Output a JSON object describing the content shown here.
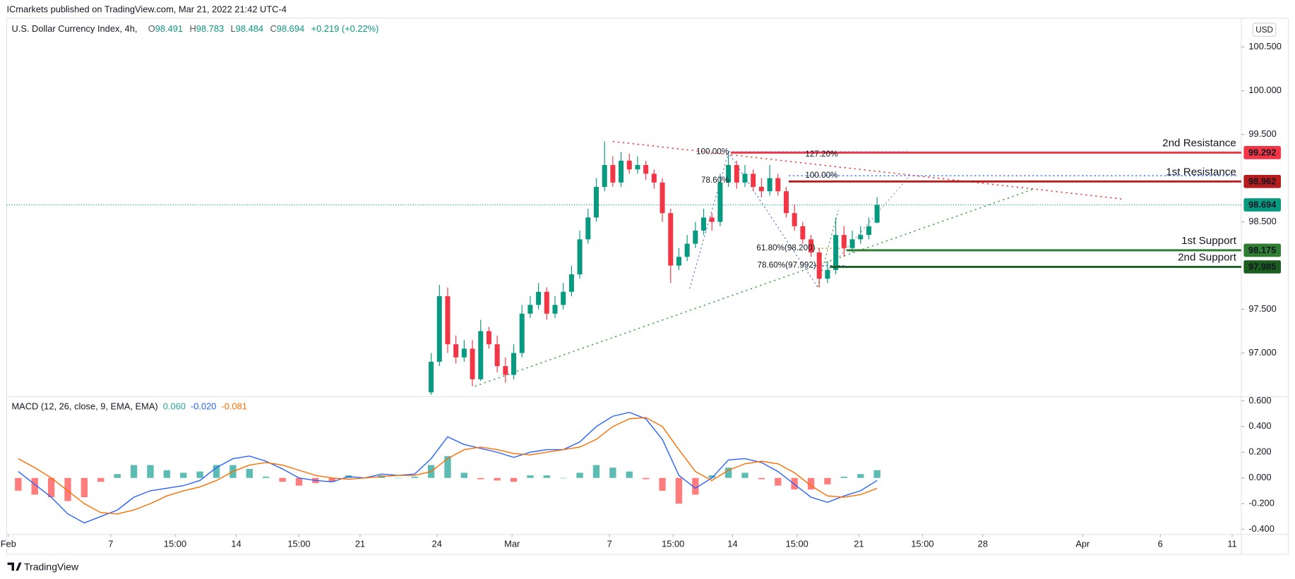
{
  "header": {
    "publisher": "ICmarkets published on TradingView.com, Mar 21, 2022 21:42 UTC-4",
    "currency": "USD",
    "brand": "TradingView"
  },
  "chart_data": [
    {
      "type": "candlestick",
      "title": "U.S. Dollar Currency Index, 4h,",
      "ohlc": [
        {
          "label": "O",
          "value": 98.491
        },
        {
          "label": "H",
          "value": 98.783
        },
        {
          "label": "L",
          "value": 98.484
        },
        {
          "label": "C",
          "value": 98.694
        }
      ],
      "change": "+0.219 (+0.22%)",
      "up_color": "#089981",
      "down_color": "#f23645",
      "xlim": [
        -51.4,
        98.1
      ],
      "ylim": [
        96.5,
        100.83
      ],
      "yticks": [
        {
          "value": 100.5,
          "label": "100.500"
        },
        {
          "value": 100,
          "label": "100.000"
        },
        {
          "value": 99.5,
          "label": "99.500"
        },
        {
          "value": 98.5,
          "label": "98.500"
        },
        {
          "value": 97.5,
          "label": "97.500"
        },
        {
          "value": 97,
          "label": "97.000"
        }
      ],
      "x": [
        0,
        1,
        2,
        3,
        4,
        5,
        6,
        7,
        8,
        9,
        10,
        11,
        12,
        13,
        14,
        15,
        16,
        17,
        18,
        19,
        20,
        21,
        22,
        23,
        24,
        25,
        26,
        27,
        28,
        29,
        30,
        31,
        32,
        33,
        34,
        35,
        36,
        37,
        38,
        39,
        40,
        41,
        42,
        43,
        44,
        45,
        46,
        47,
        48,
        49,
        50,
        51,
        52,
        53,
        54
      ],
      "open": [
        96.55,
        96.9,
        97.65,
        97.1,
        96.95,
        97.05,
        96.7,
        97.25,
        97.1,
        96.85,
        96.75,
        97.0,
        97.45,
        97.55,
        97.7,
        97.45,
        97.55,
        97.7,
        97.9,
        98.3,
        98.55,
        98.9,
        99.15,
        98.95,
        99.2,
        99.1,
        99.15,
        99.05,
        98.95,
        98.6,
        98.0,
        98.1,
        98.25,
        98.4,
        98.55,
        98.5,
        98.95,
        99.15,
        98.95,
        99.05,
        98.9,
        98.85,
        99.0,
        98.85,
        98.6,
        98.45,
        98.3,
        98.15,
        97.85,
        97.95,
        98.35,
        98.2,
        98.3,
        98.35,
        98.491
      ],
      "high": [
        97.0,
        97.78,
        97.75,
        97.2,
        97.15,
        97.15,
        97.38,
        97.3,
        97.2,
        96.95,
        97.1,
        97.55,
        97.65,
        97.8,
        97.75,
        97.65,
        97.8,
        98.0,
        98.4,
        98.65,
        99.0,
        99.42,
        99.25,
        99.3,
        99.28,
        99.25,
        99.2,
        99.1,
        99.0,
        98.65,
        98.2,
        98.35,
        98.5,
        98.65,
        98.6,
        99.05,
        99.29,
        99.2,
        99.15,
        99.1,
        99.0,
        99.15,
        99.05,
        98.9,
        98.7,
        98.5,
        98.35,
        98.2,
        98.05,
        98.55,
        98.45,
        98.4,
        98.45,
        98.55,
        98.783
      ],
      "low": [
        96.52,
        96.85,
        97.0,
        96.88,
        96.9,
        96.62,
        96.68,
        97.05,
        96.78,
        96.66,
        96.7,
        96.95,
        97.4,
        97.5,
        97.38,
        97.4,
        97.5,
        97.65,
        97.85,
        98.25,
        98.5,
        98.85,
        98.9,
        98.9,
        99.05,
        99.05,
        98.98,
        98.88,
        98.5,
        97.8,
        97.95,
        98.05,
        98.2,
        98.35,
        98.4,
        98.45,
        98.9,
        98.88,
        98.9,
        98.85,
        98.78,
        98.8,
        98.8,
        98.55,
        98.4,
        98.25,
        98.1,
        97.75,
        97.8,
        97.9,
        98.1,
        98.15,
        98.25,
        98.3,
        98.484
      ],
      "close": [
        96.9,
        97.65,
        97.1,
        96.95,
        97.05,
        96.7,
        97.25,
        97.1,
        96.85,
        96.75,
        97.0,
        97.45,
        97.55,
        97.7,
        97.45,
        97.55,
        97.7,
        97.9,
        98.3,
        98.55,
        98.9,
        99.15,
        98.95,
        99.2,
        99.1,
        99.15,
        99.05,
        98.95,
        98.6,
        98.0,
        98.1,
        98.25,
        98.4,
        98.55,
        98.5,
        98.95,
        99.15,
        98.95,
        99.05,
        98.9,
        98.85,
        99.0,
        98.85,
        98.6,
        98.45,
        98.3,
        98.15,
        97.85,
        97.95,
        98.35,
        98.2,
        98.3,
        98.35,
        98.45,
        98.694
      ],
      "last_price": {
        "value": 98.694,
        "color": "#089981"
      },
      "levels": [
        {
          "label": "2nd Resistance",
          "value": 99.292,
          "color": "#f23645",
          "x_start": 36.3
        },
        {
          "label": "1st Resistance",
          "value": 98.962,
          "color": "#b71c1c",
          "x_start": 43.3
        },
        {
          "label": "1st Support",
          "value": 98.175,
          "color": "#2e7d32",
          "x_start": 50.3
        },
        {
          "label": "2nd Support",
          "value": 97.985,
          "color": "#1b5e20",
          "x_start": 48.3
        }
      ],
      "trendlines": [
        {
          "color": "#e53935",
          "x": [
            22,
            83.8
          ],
          "y": [
            99.42,
            98.76
          ]
        },
        {
          "color": "#43a047",
          "x": [
            5.3,
            72.8
          ],
          "y": [
            96.62,
            98.87
          ]
        }
      ],
      "annotations": [
        {
          "text": "100.00%",
          "color": "#2962ff"
        },
        {
          "text": "127.20%",
          "color": "#90a4d4"
        },
        {
          "text": "78.60%",
          "color": "#2962ff"
        },
        {
          "text": "100.00%",
          "color": "#2962ff"
        },
        {
          "text": "61.80%(98.200)",
          "color": "#b8860b"
        },
        {
          "text": "78.60%(97.992)",
          "color": "#2962ff"
        }
      ]
    },
    {
      "type": "macd",
      "title": "MACD (12, 26, close, 9, EMA, EMA)",
      "current": [
        {
          "value": 0.06,
          "label": "0.060",
          "color": "#26a69a"
        },
        {
          "value": -0.02,
          "label": "-0.020",
          "color": "#2962ff"
        },
        {
          "value": -0.081,
          "label": "-0.081",
          "color": "#ff6d00"
        }
      ],
      "xlim": [
        -51.4,
        98.1
      ],
      "ylim": [
        -0.44,
        0.632
      ],
      "yticks": [
        {
          "value": 0.6,
          "label": "0.600"
        },
        {
          "value": 0.4,
          "label": "0.400"
        },
        {
          "value": 0.2,
          "label": "0.200"
        },
        {
          "value": 0,
          "label": "0.000"
        },
        {
          "value": -0.2,
          "label": "-0.200"
        },
        {
          "value": -0.4,
          "label": "-0.400"
        }
      ],
      "xticks": [
        {
          "value": -51.2,
          "label": "Feb"
        },
        {
          "value": -38.8,
          "label": "7"
        },
        {
          "value": -31,
          "label": "15:00"
        },
        {
          "value": -23.6,
          "label": "14"
        },
        {
          "value": -16,
          "label": "15:00"
        },
        {
          "value": -8.6,
          "label": "21"
        },
        {
          "value": 0.7,
          "label": "24"
        },
        {
          "value": 9.8,
          "label": "Mar"
        },
        {
          "value": 21.6,
          "label": "7"
        },
        {
          "value": 29.3,
          "label": "15:00"
        },
        {
          "value": 36.5,
          "label": "14"
        },
        {
          "value": 44.3,
          "label": "15:00"
        },
        {
          "value": 51.8,
          "label": "21"
        },
        {
          "value": 59.5,
          "label": "15:00"
        },
        {
          "value": 66.8,
          "label": "28"
        },
        {
          "value": 78.9,
          "label": "Apr"
        },
        {
          "value": 88.3,
          "label": "6"
        },
        {
          "value": 97,
          "label": "11"
        }
      ],
      "x": [
        -50,
        -48,
        -46,
        -44,
        -42,
        -40,
        -38,
        -36,
        -34,
        -32,
        -30,
        -28,
        -26,
        -24,
        -22,
        -20,
        -18,
        -16,
        -14,
        -12,
        -10,
        -8,
        -6,
        -4,
        -2,
        0,
        2,
        4,
        6,
        8,
        10,
        12,
        14,
        16,
        18,
        20,
        22,
        24,
        26,
        28,
        30,
        32,
        34,
        36,
        38,
        40,
        42,
        44,
        46,
        48,
        50,
        52,
        54
      ],
      "histogram": {
        "pos_color": "#26a69a",
        "neg_color": "#ff5252",
        "values": [
          -0.1,
          -0.13,
          -0.15,
          -0.18,
          -0.15,
          -0.03,
          0.03,
          0.1,
          0.1,
          0.06,
          0.04,
          0.05,
          0.1,
          0.1,
          0.07,
          0.01,
          -0.03,
          -0.06,
          -0.04,
          -0.03,
          0.02,
          0.0,
          0.02,
          0.0,
          0.01,
          0.1,
          0.17,
          0.04,
          -0.01,
          -0.02,
          -0.03,
          0.02,
          0.02,
          0.0,
          0.04,
          0.1,
          0.08,
          0.05,
          -0.01,
          -0.1,
          -0.2,
          -0.13,
          0.02,
          0.08,
          0.04,
          -0.01,
          -0.06,
          -0.09,
          -0.09,
          -0.05,
          0.01,
          0.03,
          0.06
        ]
      },
      "macd": {
        "color": "#2962ff",
        "values": [
          0.05,
          -0.05,
          -0.15,
          -0.28,
          -0.35,
          -0.3,
          -0.25,
          -0.15,
          -0.1,
          -0.08,
          -0.06,
          -0.02,
          0.08,
          0.15,
          0.17,
          0.13,
          0.07,
          0.0,
          -0.02,
          -0.03,
          0.01,
          0.0,
          0.03,
          0.02,
          0.03,
          0.15,
          0.32,
          0.26,
          0.23,
          0.2,
          0.16,
          0.2,
          0.22,
          0.22,
          0.28,
          0.4,
          0.48,
          0.51,
          0.46,
          0.3,
          0.02,
          -0.08,
          0.0,
          0.14,
          0.15,
          0.12,
          0.05,
          -0.05,
          -0.15,
          -0.19,
          -0.14,
          -0.1,
          -0.02
        ]
      },
      "signal": {
        "color": "#ff6d00",
        "values": [
          0.15,
          0.08,
          0.0,
          -0.1,
          -0.2,
          -0.27,
          -0.28,
          -0.25,
          -0.2,
          -0.14,
          -0.1,
          -0.07,
          -0.02,
          0.05,
          0.1,
          0.12,
          0.1,
          0.06,
          0.02,
          0.0,
          -0.01,
          0.0,
          0.01,
          0.02,
          0.02,
          0.05,
          0.15,
          0.22,
          0.24,
          0.22,
          0.19,
          0.18,
          0.2,
          0.22,
          0.24,
          0.3,
          0.4,
          0.46,
          0.47,
          0.4,
          0.22,
          0.05,
          -0.02,
          0.06,
          0.11,
          0.13,
          0.11,
          0.04,
          -0.06,
          -0.14,
          -0.15,
          -0.13,
          -0.081
        ]
      }
    }
  ]
}
